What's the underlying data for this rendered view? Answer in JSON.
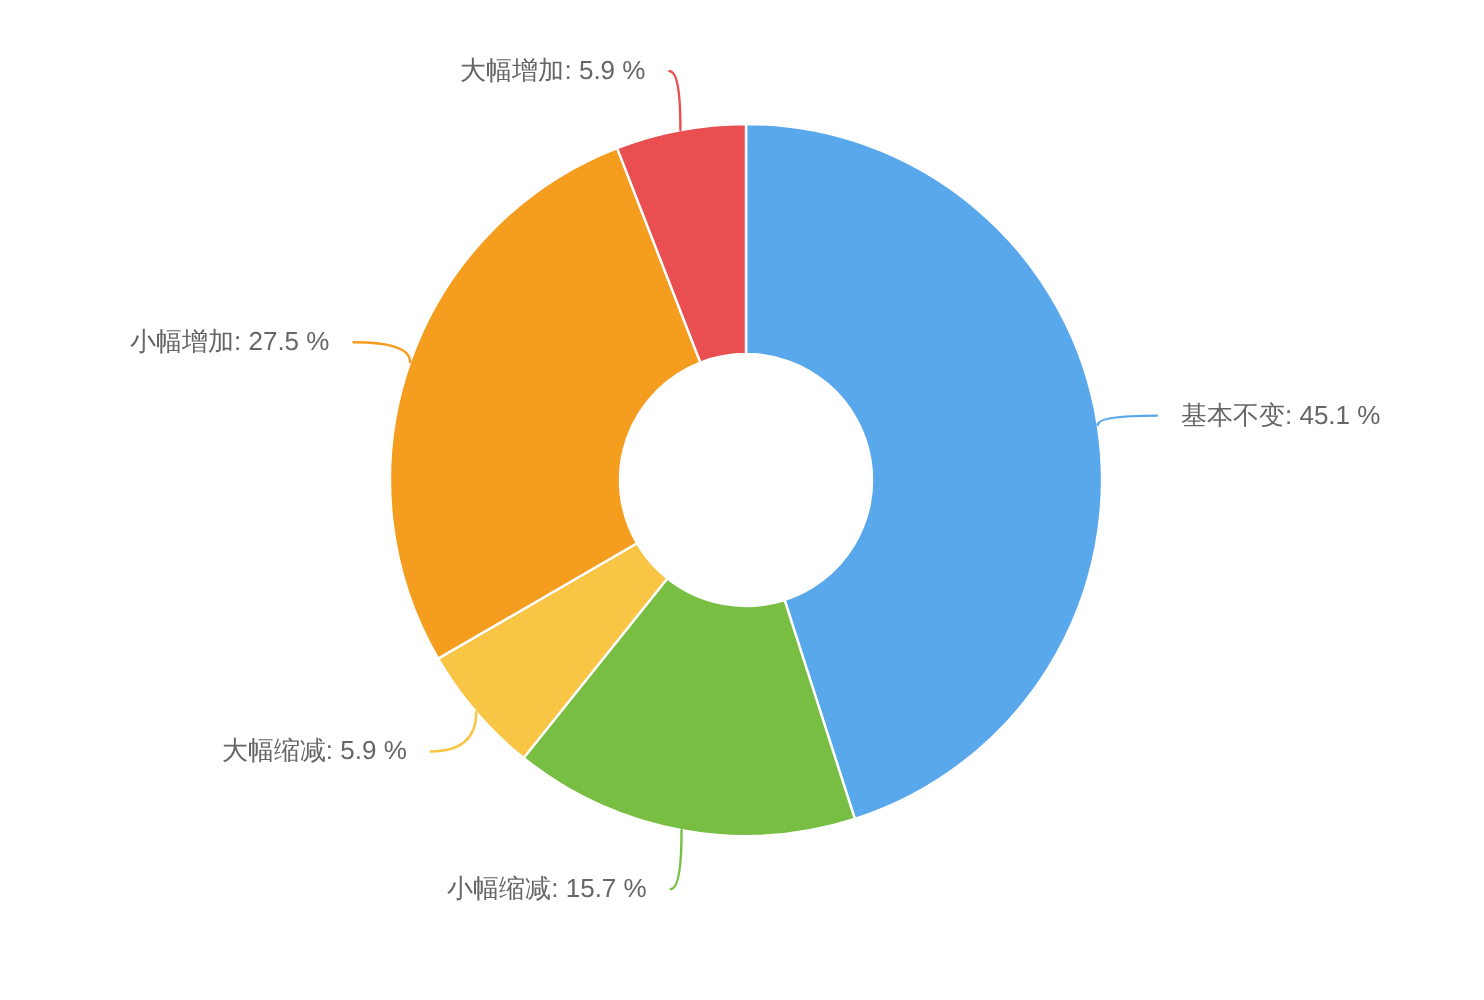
{
  "chart_data": {
    "type": "donut",
    "categories": [
      "基本不变",
      "小幅缩减",
      "大幅缩减",
      "小幅增加",
      "大幅增加"
    ],
    "values": [
      45.1,
      15.7,
      5.9,
      27.5,
      5.9
    ],
    "colors": [
      "#5aa8ec",
      "#78be43",
      "#f9c545",
      "#f59d1f",
      "#e94e50"
    ],
    "value_labels": [
      "45.1 %",
      "15.7 %",
      "5.9 %",
      "27.5 %",
      "5.9 %"
    ]
  }
}
